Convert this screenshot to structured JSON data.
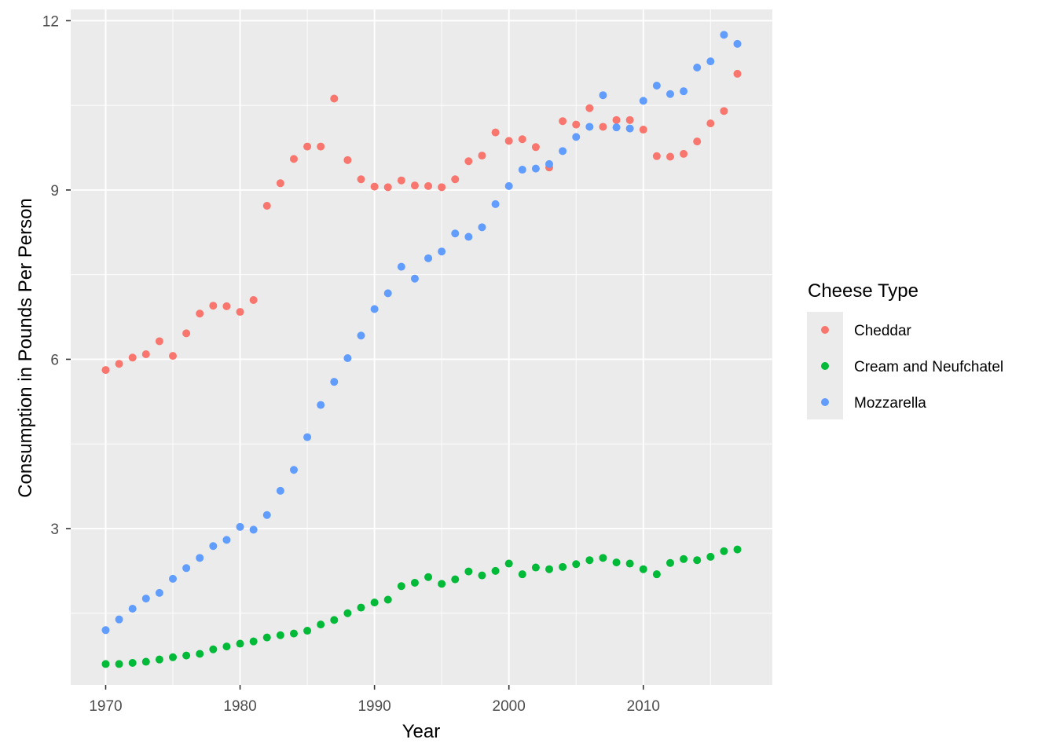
{
  "chart_data": {
    "type": "scatter",
    "xlabel": "Year",
    "ylabel": "Consumption in Pounds Per Person",
    "xlim": [
      1967.4,
      2019.6
    ],
    "ylim": [
      0.23,
      12.2
    ],
    "xticks": [
      "1970",
      "1980",
      "1990",
      "2000",
      "2010"
    ],
    "yticks": [
      "3",
      "6",
      "9",
      "12"
    ],
    "grid": true,
    "legend": {
      "title": "Cheese Type",
      "position": "right"
    },
    "x": [
      1970,
      1971,
      1972,
      1973,
      1974,
      1975,
      1976,
      1977,
      1978,
      1979,
      1980,
      1981,
      1982,
      1983,
      1984,
      1985,
      1986,
      1987,
      1988,
      1989,
      1990,
      1991,
      1992,
      1993,
      1994,
      1995,
      1996,
      1997,
      1998,
      1999,
      2000,
      2001,
      2002,
      2003,
      2004,
      2005,
      2006,
      2007,
      2008,
      2009,
      2010,
      2011,
      2012,
      2013,
      2014,
      2015,
      2016,
      2017
    ],
    "series": [
      {
        "name": "Cheddar",
        "color": "#F8766D",
        "values": [
          5.81,
          5.92,
          6.03,
          6.09,
          6.32,
          6.06,
          6.46,
          6.81,
          6.95,
          6.94,
          6.84,
          7.05,
          8.72,
          9.12,
          9.55,
          9.77,
          9.77,
          10.62,
          9.53,
          9.19,
          9.06,
          9.05,
          9.17,
          9.08,
          9.07,
          9.05,
          9.19,
          9.51,
          9.61,
          10.02,
          9.87,
          9.9,
          9.76,
          9.4,
          10.22,
          10.16,
          10.45,
          10.12,
          10.24,
          10.24,
          10.07,
          9.6,
          9.59,
          9.64,
          9.86,
          10.18,
          10.4,
          11.06
        ]
      },
      {
        "name": "Cream and Neufchatel",
        "color": "#00BA38",
        "values": [
          0.6,
          0.6,
          0.62,
          0.64,
          0.68,
          0.72,
          0.75,
          0.78,
          0.86,
          0.91,
          0.96,
          1.0,
          1.07,
          1.11,
          1.14,
          1.19,
          1.3,
          1.38,
          1.5,
          1.6,
          1.69,
          1.74,
          1.98,
          2.04,
          2.14,
          2.02,
          2.1,
          2.24,
          2.17,
          2.25,
          2.38,
          2.19,
          2.31,
          2.28,
          2.32,
          2.37,
          2.44,
          2.48,
          2.4,
          2.38,
          2.28,
          2.19,
          2.39,
          2.46,
          2.44,
          2.5,
          2.6,
          2.63
        ]
      },
      {
        "name": "Mozzarella",
        "color": "#619CFF",
        "values": [
          1.2,
          1.39,
          1.58,
          1.76,
          1.86,
          2.11,
          2.3,
          2.48,
          2.69,
          2.8,
          3.03,
          2.98,
          3.24,
          3.67,
          4.04,
          4.62,
          5.19,
          5.6,
          6.02,
          6.42,
          6.89,
          7.17,
          7.64,
          7.43,
          7.79,
          7.91,
          8.23,
          8.17,
          8.34,
          8.75,
          9.07,
          9.36,
          9.38,
          9.46,
          9.69,
          9.94,
          10.12,
          10.68,
          10.11,
          10.09,
          10.58,
          10.85,
          10.7,
          10.75,
          11.17,
          11.28,
          11.75,
          11.59
        ]
      }
    ]
  }
}
